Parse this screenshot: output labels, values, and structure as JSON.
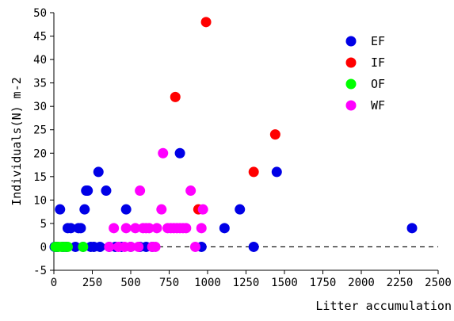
{
  "chart_data": {
    "type": "scatter",
    "title": "",
    "xlabel": "Litter accumulation",
    "ylabel": "Individuals(N) m-2",
    "xlim": [
      0,
      2500
    ],
    "ylim": [
      -5,
      50
    ],
    "xticks": [
      0,
      250,
      500,
      750,
      1000,
      1250,
      1500,
      1750,
      2000,
      2250,
      2500
    ],
    "yticks": [
      -5,
      0,
      5,
      10,
      15,
      20,
      25,
      30,
      35,
      40,
      45,
      50
    ],
    "reference_line": {
      "y": 0,
      "style": "dashed"
    },
    "legend_position": "top-right",
    "grid": false,
    "series": [
      {
        "name": "EF",
        "color": "#0000e6",
        "points": [
          [
            5,
            0
          ],
          [
            20,
            0
          ],
          [
            40,
            8
          ],
          [
            60,
            0
          ],
          [
            80,
            0
          ],
          [
            90,
            4
          ],
          [
            110,
            4
          ],
          [
            140,
            0
          ],
          [
            160,
            4
          ],
          [
            175,
            4
          ],
          [
            190,
            0
          ],
          [
            200,
            8
          ],
          [
            210,
            12
          ],
          [
            220,
            12
          ],
          [
            240,
            0
          ],
          [
            260,
            0
          ],
          [
            290,
            16
          ],
          [
            300,
            0
          ],
          [
            340,
            12
          ],
          [
            360,
            0
          ],
          [
            400,
            0
          ],
          [
            440,
            0
          ],
          [
            470,
            8
          ],
          [
            500,
            0
          ],
          [
            560,
            0
          ],
          [
            600,
            0
          ],
          [
            640,
            0
          ],
          [
            820,
            20
          ],
          [
            960,
            0
          ],
          [
            1110,
            4
          ],
          [
            1210,
            8
          ],
          [
            1300,
            0
          ],
          [
            1450,
            16
          ],
          [
            2330,
            4
          ]
        ]
      },
      {
        "name": "IF",
        "color": "#ff0000",
        "points": [
          [
            790,
            32
          ],
          [
            940,
            8
          ],
          [
            990,
            48
          ],
          [
            1300,
            16
          ],
          [
            1440,
            24
          ]
        ]
      },
      {
        "name": "OF",
        "color": "#00ff00",
        "points": [
          [
            10,
            0
          ],
          [
            30,
            0
          ],
          [
            50,
            0
          ],
          [
            70,
            0
          ],
          [
            90,
            0
          ],
          [
            190,
            0
          ]
        ]
      },
      {
        "name": "WF",
        "color": "#ff00ff",
        "points": [
          [
            360,
            0
          ],
          [
            390,
            4
          ],
          [
            420,
            0
          ],
          [
            460,
            0
          ],
          [
            470,
            4
          ],
          [
            500,
            0
          ],
          [
            530,
            4
          ],
          [
            550,
            0
          ],
          [
            560,
            12
          ],
          [
            580,
            4
          ],
          [
            600,
            4
          ],
          [
            620,
            4
          ],
          [
            640,
            0
          ],
          [
            660,
            0
          ],
          [
            670,
            4
          ],
          [
            700,
            8
          ],
          [
            710,
            20
          ],
          [
            740,
            4
          ],
          [
            760,
            4
          ],
          [
            780,
            4
          ],
          [
            800,
            4
          ],
          [
            820,
            4
          ],
          [
            840,
            4
          ],
          [
            860,
            4
          ],
          [
            890,
            12
          ],
          [
            920,
            0
          ],
          [
            960,
            4
          ],
          [
            970,
            8
          ]
        ]
      }
    ]
  }
}
